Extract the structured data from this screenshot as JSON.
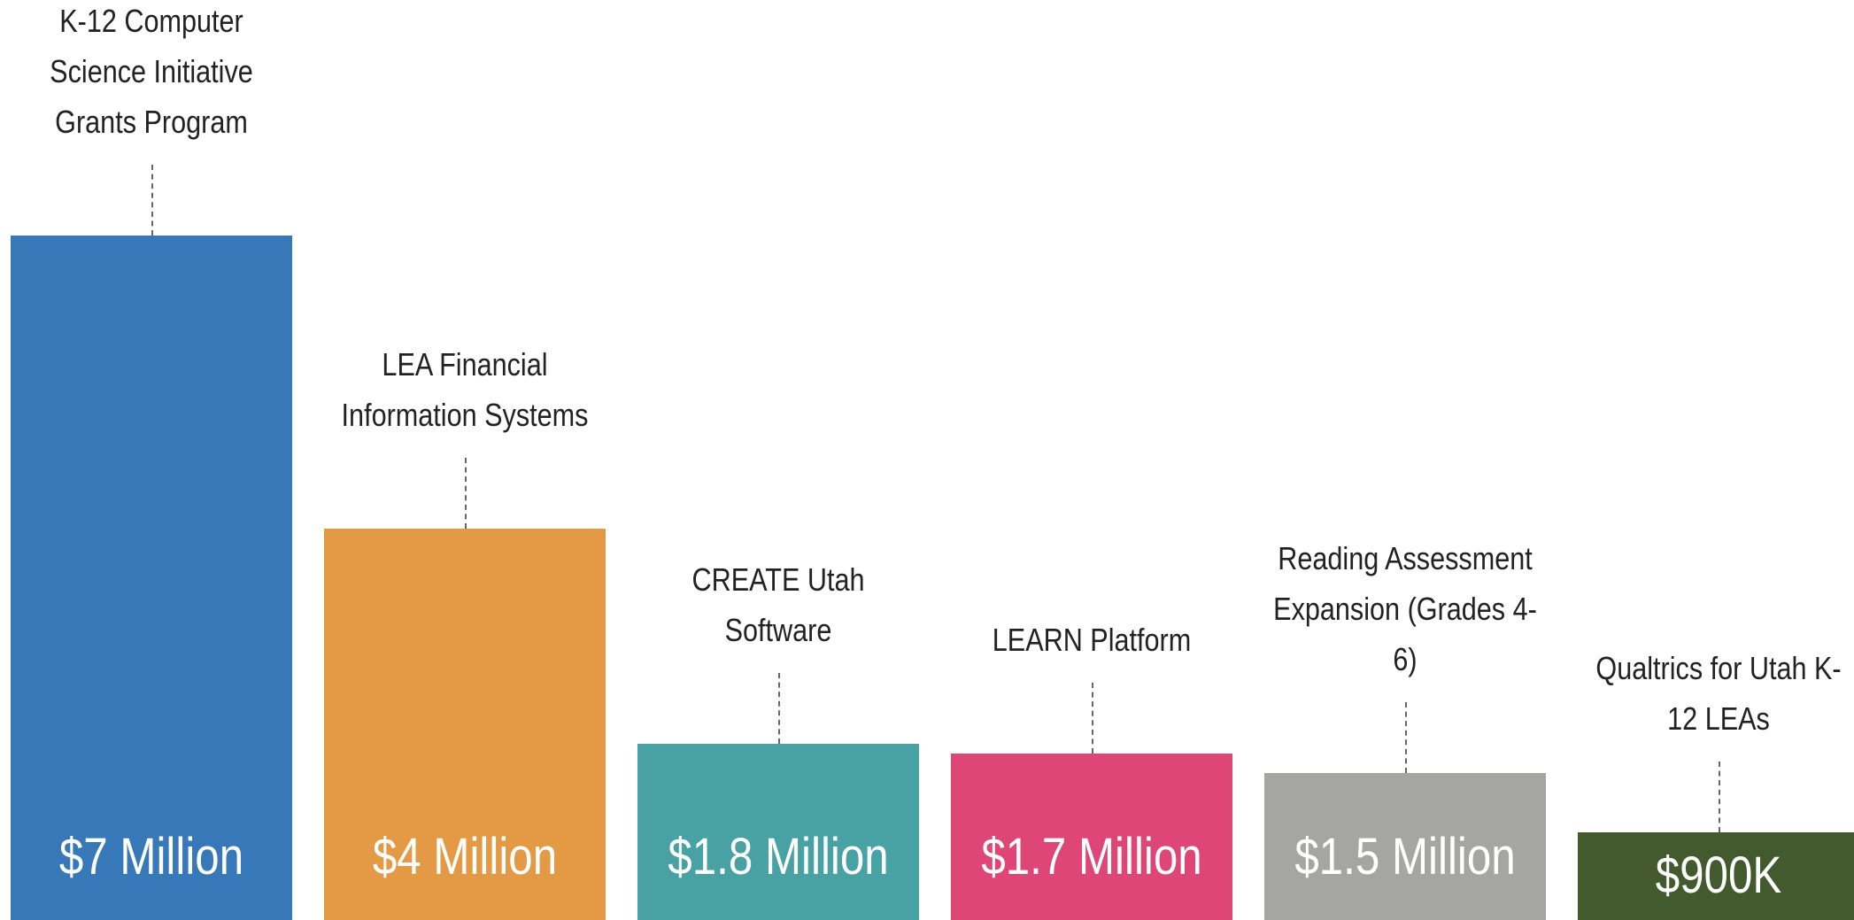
{
  "chart_data": {
    "type": "bar",
    "categories": [
      "K-12 Computer Science Initiative Grants Program",
      "LEA Financial Information Systems",
      "CREATE Utah Software",
      "LEARN Platform",
      "Reading Assessment Expansion (Grades 4-6)",
      "Qualtrics for Utah K-12 LEAs"
    ],
    "values": [
      7,
      4,
      1.8,
      1.7,
      1.5,
      0.9
    ],
    "value_labels": [
      "$7 Million",
      "$4 Million",
      "$1.8 Million",
      "$1.7 Million",
      "$1.5 Million",
      "$900K"
    ],
    "colors": [
      "#3778b8",
      "#e49a45",
      "#48a2a4",
      "#de4677",
      "#a5a5a4",
      "#435a2e"
    ]
  }
}
